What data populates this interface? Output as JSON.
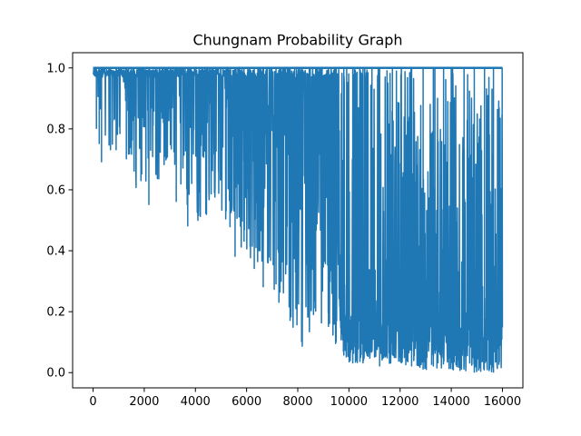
{
  "chart_data": {
    "type": "line",
    "title": "Chungnam Probability Graph",
    "xlabel": "",
    "ylabel": "",
    "xlim": [
      -800,
      16800
    ],
    "ylim": [
      -0.05,
      1.05
    ],
    "grid": false,
    "x_ticks": [
      0,
      2000,
      4000,
      6000,
      8000,
      10000,
      12000,
      14000,
      16000
    ],
    "y_ticks": [
      0.0,
      0.2,
      0.4,
      0.6,
      0.8,
      1.0
    ],
    "x_tick_labels": [
      "0",
      "2000",
      "4000",
      "6000",
      "8000",
      "10000",
      "12000",
      "14000",
      "16000"
    ],
    "y_tick_labels": [
      "0.0",
      "0.2",
      "0.4",
      "0.6",
      "0.8",
      "1.0"
    ],
    "series": [
      {
        "color": "#1f77b4",
        "x_range": [
          0,
          16000
        ],
        "upper_value": 1.0,
        "envelope_x": [
          0,
          1000,
          2000,
          3000,
          4000,
          5000,
          6000,
          7000,
          8000,
          9000,
          10000,
          11000,
          12000,
          13000,
          14000,
          15000,
          16000
        ],
        "envelope_min": [
          0.69,
          0.72,
          0.55,
          0.7,
          0.48,
          0.53,
          0.38,
          0.28,
          0.07,
          0.15,
          0.03,
          0.03,
          0.03,
          0.01,
          0.01,
          0.0,
          0.0
        ],
        "dips": [
          {
            "x": 130,
            "y": 0.8
          },
          {
            "x": 240,
            "y": 0.75
          },
          {
            "x": 330,
            "y": 0.69
          },
          {
            "x": 680,
            "y": 0.73
          },
          {
            "x": 900,
            "y": 0.73
          },
          {
            "x": 1300,
            "y": 0.7
          },
          {
            "x": 1600,
            "y": 0.66
          },
          {
            "x": 1900,
            "y": 0.65
          },
          {
            "x": 2180,
            "y": 0.55
          },
          {
            "x": 2450,
            "y": 0.75
          },
          {
            "x": 3250,
            "y": 0.56
          },
          {
            "x": 3700,
            "y": 0.48
          },
          {
            "x": 4150,
            "y": 0.59
          },
          {
            "x": 4900,
            "y": 0.66
          },
          {
            "x": 5200,
            "y": 0.53
          },
          {
            "x": 5550,
            "y": 0.38
          },
          {
            "x": 5900,
            "y": 0.43
          },
          {
            "x": 6300,
            "y": 0.34
          },
          {
            "x": 6650,
            "y": 0.28
          },
          {
            "x": 7150,
            "y": 0.29
          },
          {
            "x": 7350,
            "y": 0.4
          },
          {
            "x": 7700,
            "y": 0.17
          },
          {
            "x": 8150,
            "y": 0.1
          },
          {
            "x": 8450,
            "y": 0.32
          },
          {
            "x": 8700,
            "y": 0.2
          },
          {
            "x": 9200,
            "y": 0.15
          },
          {
            "x": 9500,
            "y": 0.1
          },
          {
            "x": 9800,
            "y": 0.49
          },
          {
            "x": 10150,
            "y": 0.03
          },
          {
            "x": 10550,
            "y": 0.03
          },
          {
            "x": 10900,
            "y": 0.08
          },
          {
            "x": 11200,
            "y": 0.02
          },
          {
            "x": 11700,
            "y": 0.06
          },
          {
            "x": 12050,
            "y": 0.03
          },
          {
            "x": 12450,
            "y": 0.02
          },
          {
            "x": 12900,
            "y": 0.01
          },
          {
            "x": 13300,
            "y": 0.02
          },
          {
            "x": 13700,
            "y": 0.27
          },
          {
            "x": 14050,
            "y": 0.01
          },
          {
            "x": 14500,
            "y": 0.02
          },
          {
            "x": 14900,
            "y": 0.0
          },
          {
            "x": 15300,
            "y": 0.11
          },
          {
            "x": 15650,
            "y": 0.0
          },
          {
            "x": 15990,
            "y": 0.29
          }
        ]
      }
    ]
  }
}
